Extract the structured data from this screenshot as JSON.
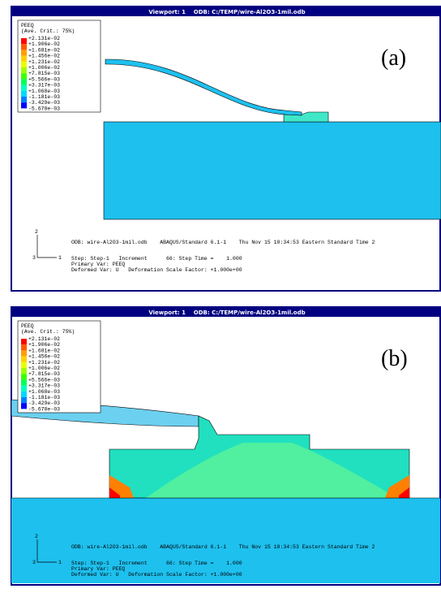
{
  "panels": [
    {
      "title": "Viewport: 1    ODB: C:/TEMP/wire-Al2O3-1mil.odb",
      "label": "(a)",
      "legend": {
        "title": "PEEQ",
        "criterion": "(Ave. Crit.: 75%)",
        "values": [
          "+2.131e-02",
          "+1.906e-02",
          "+1.681e-02",
          "+1.456e-02",
          "+1.231e-02",
          "+1.006e-02",
          "+7.815e-03",
          "+5.566e-03",
          "+3.317e-03",
          "+1.068e-03",
          "-1.181e-03",
          "-3.429e-03",
          "-5.678e-03"
        ]
      },
      "triad": {
        "axis2": "2",
        "axis3": "3",
        "axis1": "1"
      },
      "footer": {
        "odb": "ODB: wire-Al2O3-1mil.odb    ABAQUS/Standard 6.1-1    Thu Nov 15 10:34:53 Eastern Standard Time 2",
        "step": "Step: Step-1   Increment      66: Step Time =    1.000",
        "primary": "Primary Var: PEEQ",
        "deformed": "Deformed Var: U   Deformation Scale Factor: +1.000e+00"
      }
    },
    {
      "title": "Viewport: 1    ODB: C:/TEMP/wire-Al2O3-1mil.odb",
      "label": "(b)",
      "legend": {
        "title": "PEEQ",
        "criterion": "(Ave. Crit.: 75%)",
        "values": [
          "+2.131e-02",
          "+1.906e-02",
          "+1.681e-02",
          "+1.456e-02",
          "+1.231e-02",
          "+1.006e-02",
          "+7.815e-03",
          "+5.566e-03",
          "+3.317e-03",
          "+1.068e-03",
          "-1.181e-03",
          "-3.429e-03",
          "-5.678e-03"
        ]
      },
      "triad": {
        "axis2": "2",
        "axis3": "3",
        "axis1": "1"
      },
      "footer": {
        "odb": "ODB: wire-Al2O3-1mil.odb    ABAQUS/Standard 6.1-1    Thu Nov 15 10:34:53 Eastern Standard Time 2",
        "step": "Step: Step-1   Increment      66: Step Time =    1.000",
        "primary": "Primary Var: PEEQ",
        "deformed": "Deformed Var: U   Deformation Scale Factor: +1.000e+00"
      }
    }
  ]
}
